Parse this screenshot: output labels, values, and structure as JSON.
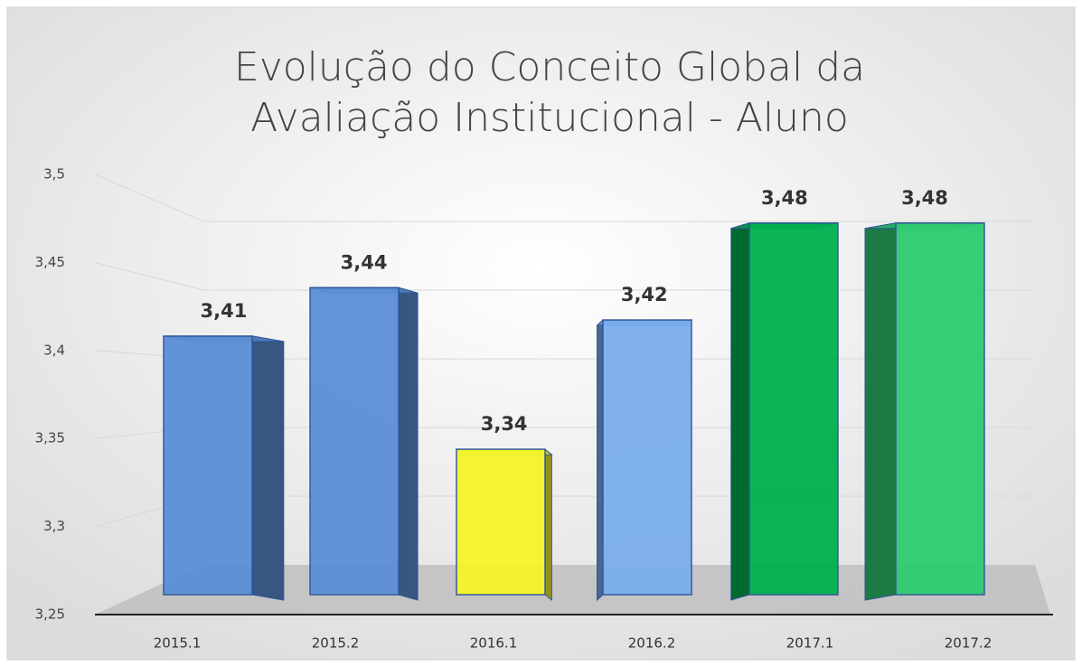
{
  "chart_data": {
    "type": "bar3d",
    "title": [
      "Evolução do Conceito Global da",
      "Avaliação Institucional - Aluno"
    ],
    "categories": [
      "2015.1",
      "2015.2",
      "2016.1",
      "2016.2",
      "2017.1",
      "2017.2"
    ],
    "values": [
      3.41,
      3.44,
      3.34,
      3.42,
      3.48,
      3.48
    ],
    "value_labels": [
      "3,41",
      "3,44",
      "3,34",
      "3,42",
      "3,48",
      "3,48"
    ],
    "colors": [
      "#5b8fd6",
      "#5b8fd6",
      "#f5f52a",
      "#7aaeee",
      "#00b04f",
      "#2ecc71"
    ],
    "ylim": [
      3.25,
      3.5
    ],
    "yticks": [
      {
        "value": 3.25,
        "label": "3,25"
      },
      {
        "value": 3.3,
        "label": "3,3"
      },
      {
        "value": 3.35,
        "label": "3,35"
      },
      {
        "value": 3.4,
        "label": "3,4"
      },
      {
        "value": 3.45,
        "label": "3,45"
      },
      {
        "value": 3.5,
        "label": "3,5"
      }
    ],
    "grid": true
  }
}
